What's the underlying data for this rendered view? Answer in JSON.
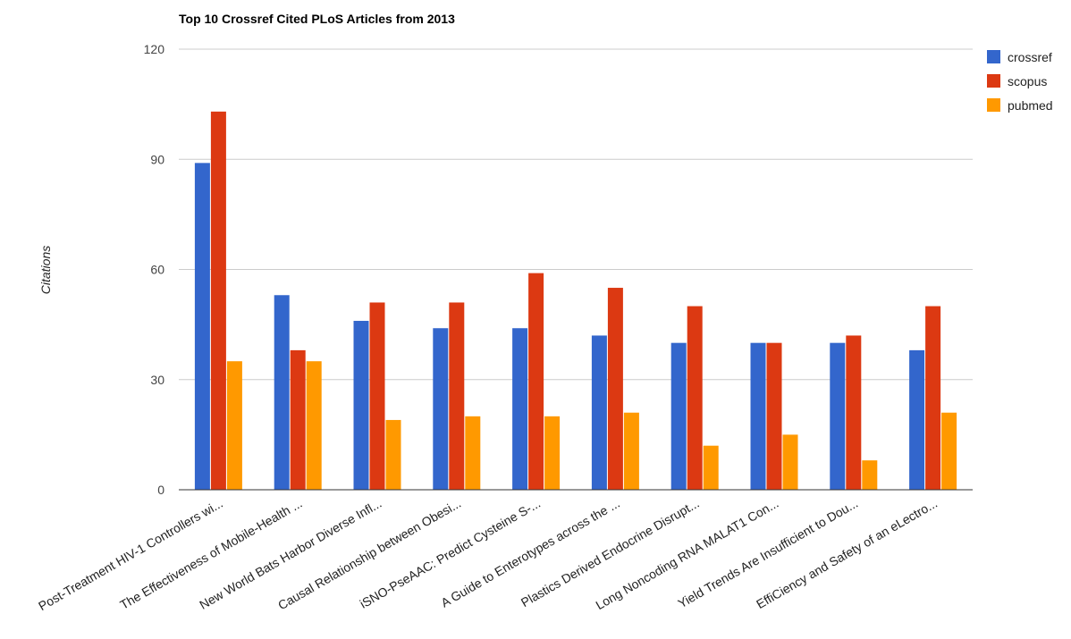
{
  "chart_data": {
    "type": "bar",
    "title": "Top 10 Crossref Cited PLoS Articles from 2013",
    "xlabel": "",
    "ylabel": "Citations",
    "ylim": [
      0,
      120
    ],
    "yticks": [
      0,
      30,
      60,
      90,
      120
    ],
    "grid": true,
    "legend": "right",
    "categories": [
      "Post-Treatment HIV-1 Controllers wi...",
      "The Effectiveness of Mobile-Health ...",
      "New World Bats Harbor Diverse Infl...",
      "Causal Relationship between Obesi...",
      "iSNO-PseAAC: Predict Cysteine S-...",
      "A Guide to Enterotypes across the ...",
      "Plastics Derived Endocrine Disrupt...",
      "Long Noncoding RNA MALAT1 Con...",
      "Yield Trends Are Insufficient to Dou...",
      "EffiCiency and Safety of an eLectro..."
    ],
    "series": [
      {
        "name": "crossref",
        "color": "#3366cc",
        "values": [
          89,
          53,
          46,
          44,
          44,
          42,
          40,
          40,
          40,
          38
        ]
      },
      {
        "name": "scopus",
        "color": "#dc3912",
        "values": [
          103,
          38,
          51,
          51,
          59,
          55,
          50,
          40,
          42,
          50
        ]
      },
      {
        "name": "pubmed",
        "color": "#ff9900",
        "values": [
          35,
          35,
          19,
          20,
          20,
          21,
          12,
          15,
          8,
          21
        ]
      }
    ]
  }
}
